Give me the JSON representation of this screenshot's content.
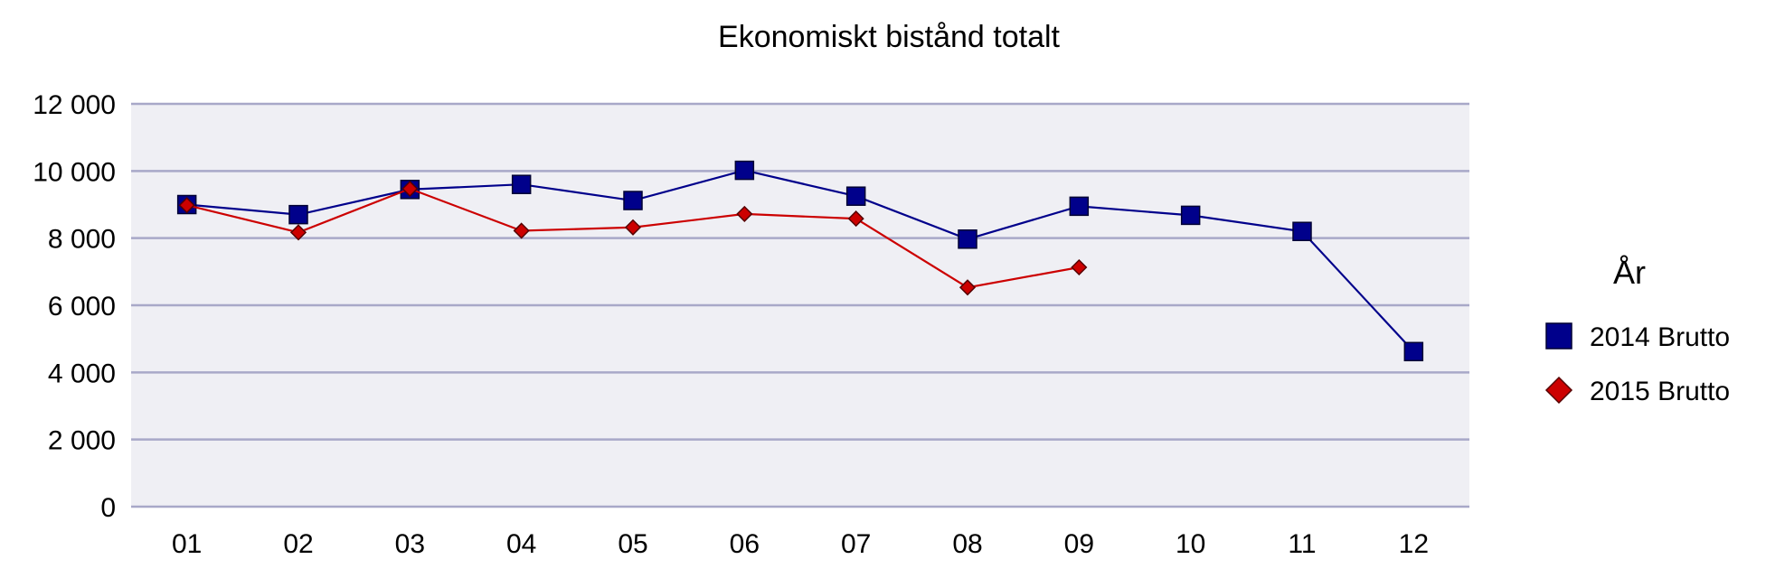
{
  "chart_data": {
    "type": "line",
    "title": "Ekonomiskt bistånd totalt",
    "xlabel": "",
    "ylabel": "",
    "categories": [
      "01",
      "02",
      "03",
      "04",
      "05",
      "06",
      "07",
      "08",
      "09",
      "10",
      "11",
      "12"
    ],
    "ylim": [
      0,
      12000
    ],
    "yticks": [
      0,
      2000,
      4000,
      6000,
      8000,
      10000,
      12000
    ],
    "ytick_labels": [
      "0",
      "2 000",
      "4 000",
      "6 000",
      "8 000",
      "10 000",
      "12 000"
    ],
    "grid": true,
    "legend": {
      "title": "År",
      "placement": "right"
    },
    "series": [
      {
        "name": "2014 Brutto",
        "color": "#00008b",
        "marker": "square",
        "values": [
          9000,
          8700,
          9450,
          9600,
          9120,
          10020,
          9250,
          7970,
          8950,
          8680,
          8200,
          4620
        ]
      },
      {
        "name": "2015 Brutto",
        "color": "#cc0000",
        "marker": "diamond",
        "values": [
          8980,
          8170,
          9470,
          8220,
          8320,
          8720,
          8580,
          6530,
          7130,
          null,
          null,
          null
        ]
      }
    ],
    "colors": {
      "plot_background": "#efeff4",
      "grid": "#a8a8c8"
    }
  }
}
